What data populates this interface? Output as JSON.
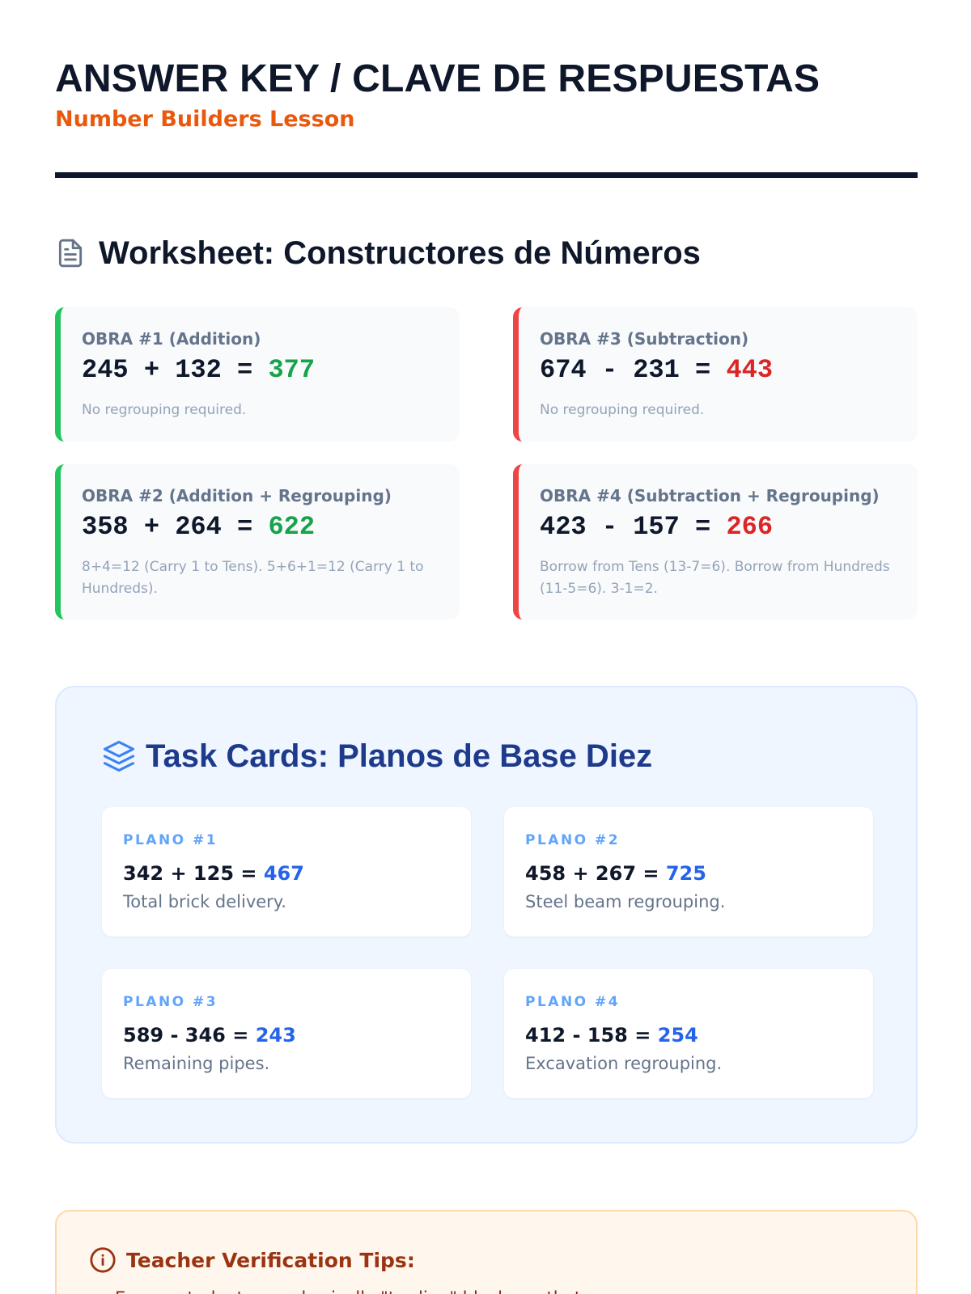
{
  "header": {
    "title": "ANSWER KEY / CLAVE DE RESPUESTAS",
    "subtitle": "Number Builders Lesson"
  },
  "worksheet": {
    "heading": "Worksheet: Constructores de Números",
    "icon": "document-icon",
    "cards": [
      {
        "label": "OBRA #1 (Addition)",
        "a": "245",
        "op": "+",
        "b": "132",
        "eq": "=",
        "answer": "377",
        "note": "No regrouping required."
      },
      {
        "label": "OBRA #3 (Subtraction)",
        "a": "674",
        "op": "-",
        "b": "231",
        "eq": "=",
        "answer": "443",
        "note": "No regrouping required."
      },
      {
        "label": "OBRA #2 (Addition + Regrouping)",
        "a": "358",
        "op": "+",
        "b": "264",
        "eq": "=",
        "answer": "622",
        "note": "8+4=12 (Carry 1 to Tens). 5+6+1=12 (Carry 1 to Hundreds)."
      },
      {
        "label": "OBRA #4 (Subtraction + Regrouping)",
        "a": "423",
        "op": "-",
        "b": "157",
        "eq": "=",
        "answer": "266",
        "note": "Borrow from Tens (13-7=6). Borrow from Hundreds (11-5=6). 3-1=2."
      }
    ]
  },
  "task_cards": {
    "heading": "Task Cards: Planos de Base Diez",
    "icon": "layers-icon",
    "cards": [
      {
        "label": "PLANO #1",
        "equation": "342 + 125 =",
        "answer": "467",
        "description": "Total brick delivery."
      },
      {
        "label": "PLANO #2",
        "equation": "458 + 267 =",
        "answer": "725",
        "description": "Steel beam regrouping."
      },
      {
        "label": "PLANO #3",
        "equation": "589 - 346 =",
        "answer": "243",
        "description": "Remaining pipes."
      },
      {
        "label": "PLANO #4",
        "equation": "412 - 158 =",
        "answer": "254",
        "description": "Excavation regrouping."
      }
    ]
  },
  "tips": {
    "heading": "Teacher Verification Tips:",
    "icon": "info-circle-icon",
    "items": [
      "Ensure students are physically \"trading\" blocks so that..."
    ]
  },
  "colors": {
    "addition_accent": "#22c55e",
    "subtraction_accent": "#ef4444",
    "subtitle": "#ea580c",
    "task_answer": "#2563eb"
  }
}
